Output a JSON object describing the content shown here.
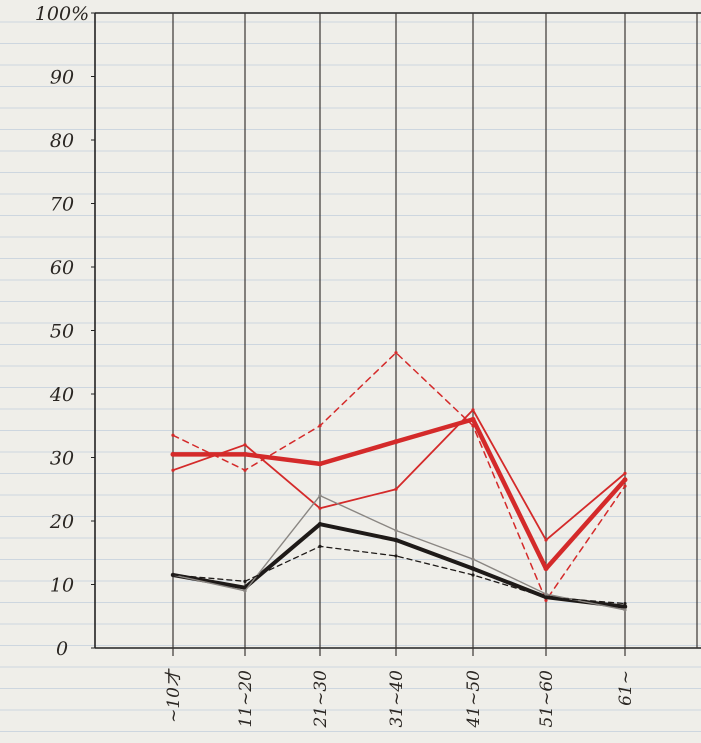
{
  "chart_data": {
    "type": "line",
    "ylim": [
      0,
      100
    ],
    "y_ticks": [
      "0",
      "10",
      "20",
      "30",
      "40",
      "50",
      "60",
      "70",
      "80",
      "90",
      "100%"
    ],
    "categories": [
      "~10才",
      "11~20",
      "21~30",
      "31~40",
      "41~50",
      "51~60",
      "61~"
    ],
    "grid": "vertical lines at each category; faint horizontal ruled lines",
    "series": [
      {
        "color": "#d42a2a",
        "width": 4.5,
        "dash": "",
        "values": [
          30.5,
          30.5,
          29,
          32.5,
          36,
          12.5,
          26.5
        ]
      },
      {
        "color": "#d42a2a",
        "width": 1.8,
        "dash": "",
        "values": [
          28,
          32,
          22,
          25,
          37.5,
          17,
          27.5
        ]
      },
      {
        "color": "#d42a2a",
        "width": 1.5,
        "dash": "6,5",
        "values": [
          33.5,
          28,
          35,
          46.5,
          35,
          7.5,
          25.5
        ]
      },
      {
        "color": "#1e1a18",
        "width": 4,
        "dash": "",
        "values": [
          11.5,
          9.5,
          19.5,
          17,
          12.5,
          8,
          6.5
        ]
      },
      {
        "color": "#8a8682",
        "width": 1.4,
        "dash": "",
        "values": [
          11.5,
          9,
          24,
          18.5,
          14,
          8.5,
          6
        ]
      },
      {
        "color": "#1e1a18",
        "width": 1.3,
        "dash": "5,4",
        "values": [
          11.5,
          10.5,
          16,
          14.5,
          11.5,
          8,
          7
        ]
      }
    ]
  }
}
